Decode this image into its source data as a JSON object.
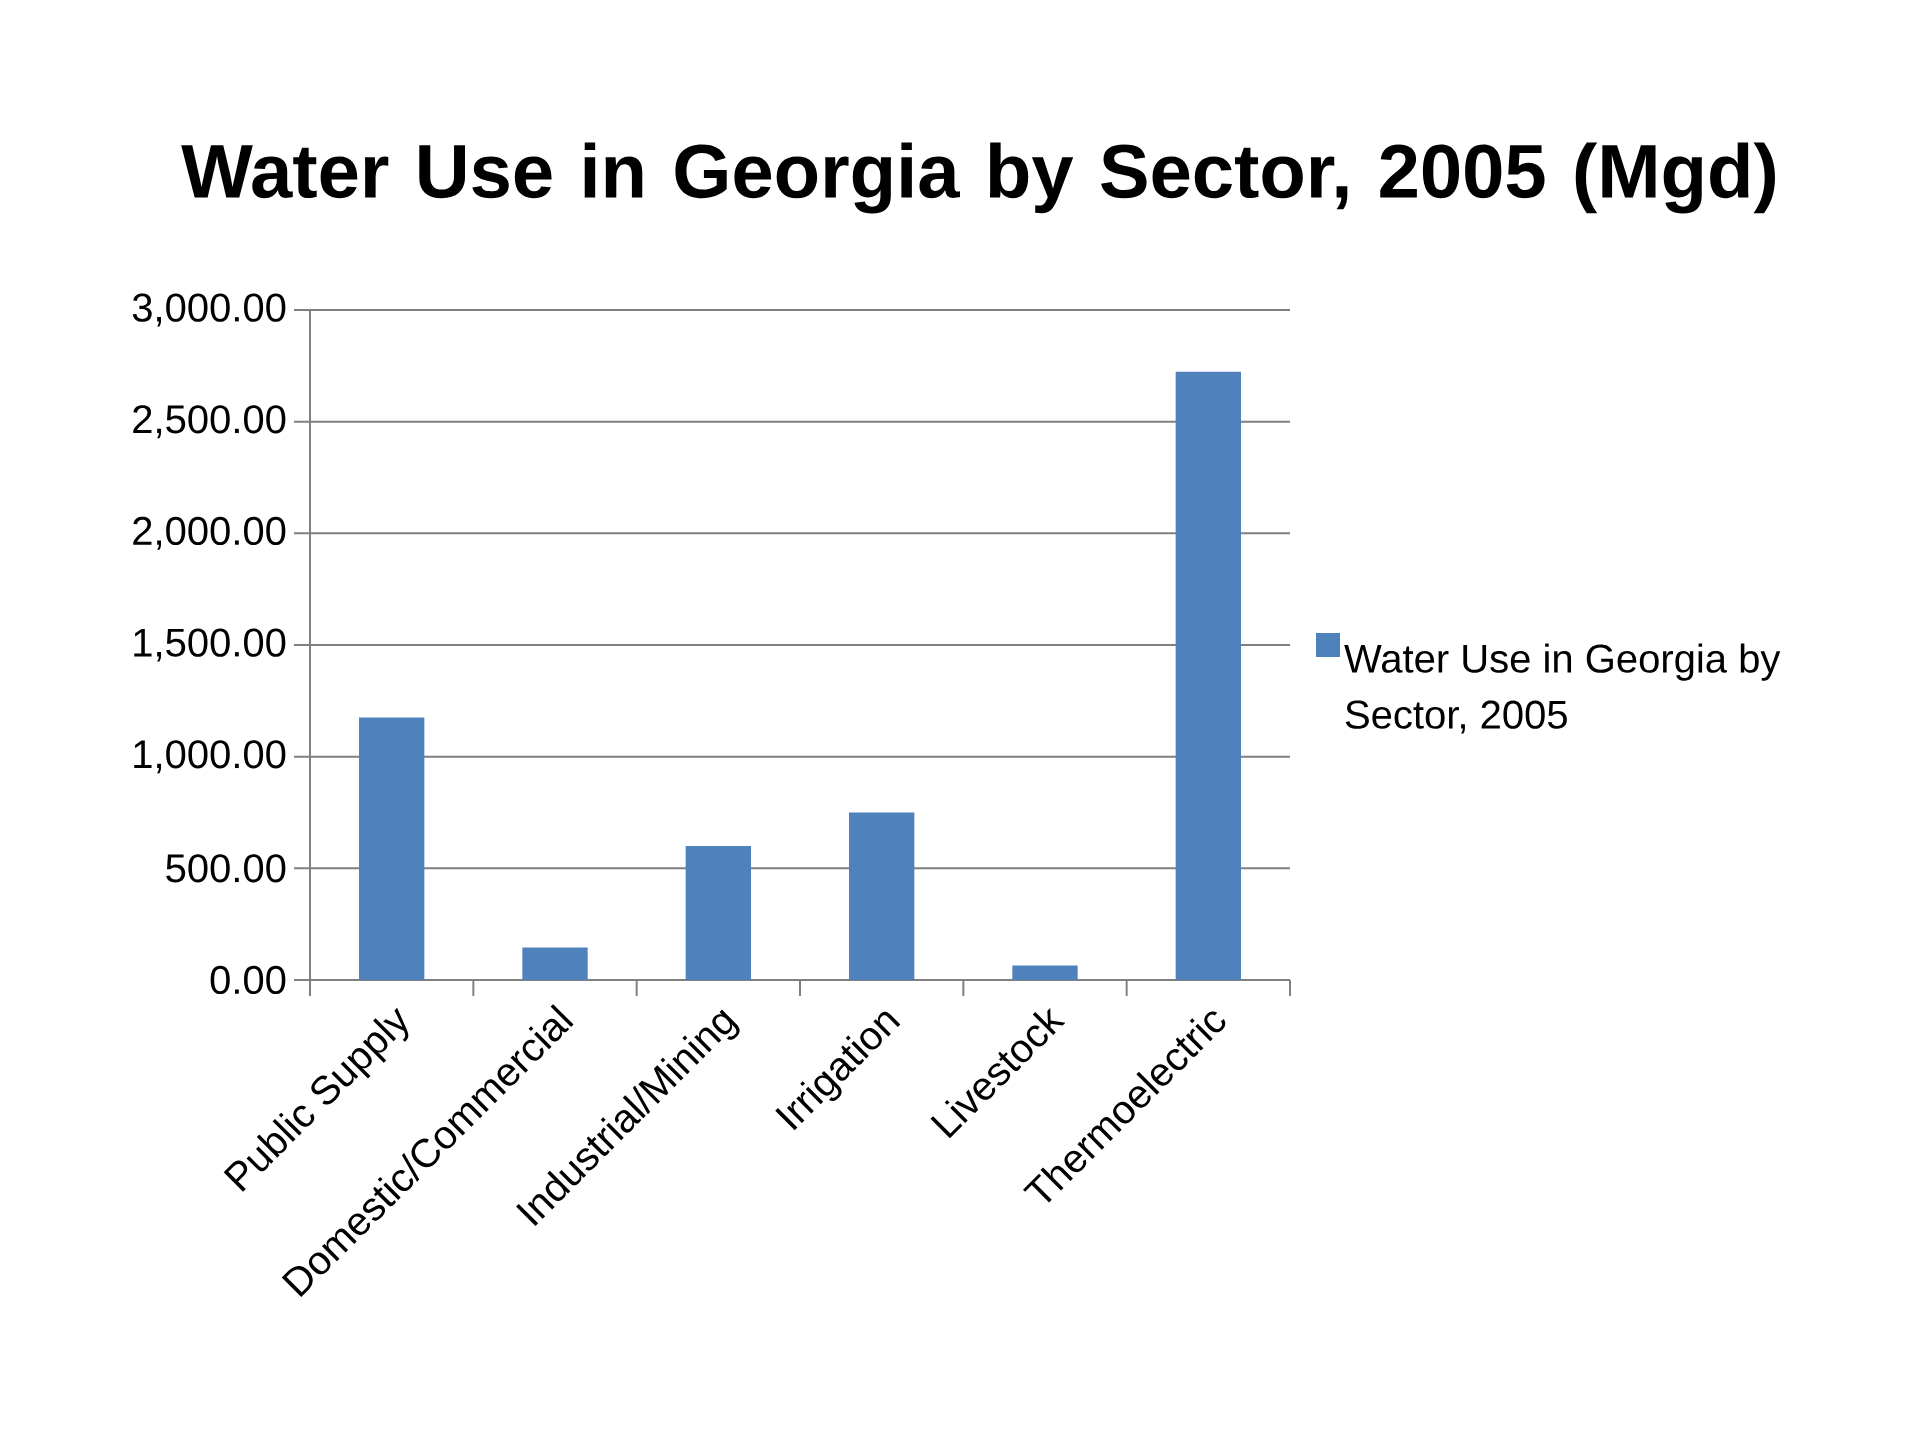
{
  "chart_data": {
    "type": "bar",
    "title": "Water Use in Georgia by Sector, 2005 (Mgd)",
    "categories": [
      "Public Supply",
      "Domestic/Commercial",
      "Industrial/Mining",
      "Irrigation",
      "Livestock",
      "Thermoelectric"
    ],
    "series": [
      {
        "name": "Water Use in Georgia by Sector, 2005",
        "color": "#4f81bd",
        "values": [
          1175,
          145,
          600,
          750,
          65,
          2725
        ]
      }
    ],
    "ylim": [
      0,
      3000
    ],
    "yticks": [
      {
        "value": 0,
        "label": "0.00"
      },
      {
        "value": 500,
        "label": "500.00"
      },
      {
        "value": 1000,
        "label": "1,000.00"
      },
      {
        "value": 1500,
        "label": "1,500.00"
      },
      {
        "value": 2000,
        "label": "2,000.00"
      },
      {
        "value": 2500,
        "label": "2,500.00"
      },
      {
        "value": 3000,
        "label": "3,000.00"
      }
    ],
    "grid": "y",
    "legend": "right"
  }
}
